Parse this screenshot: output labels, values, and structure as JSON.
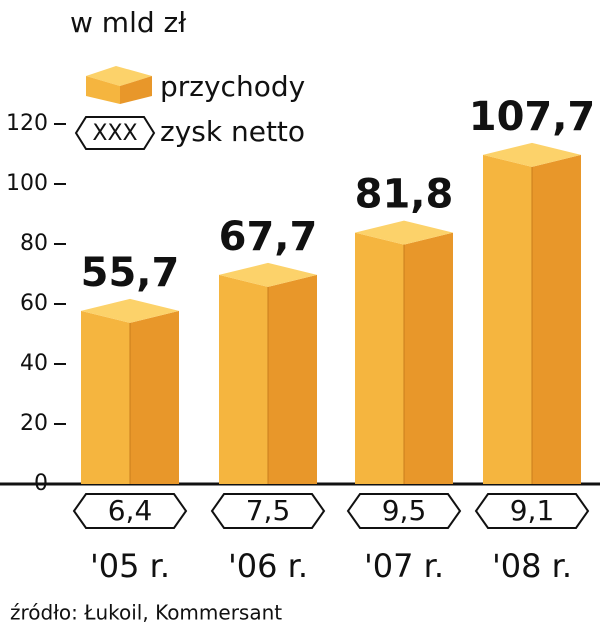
{
  "chart_data": {
    "type": "bar",
    "subtitle": "w mld zł",
    "categories": [
      "'05 r.",
      "'06 r.",
      "'07 r.",
      "'08 r."
    ],
    "series": [
      {
        "name": "przychody",
        "color": "#f5b53f",
        "values": [
          55.7,
          67.7,
          81.8,
          107.7
        ],
        "value_labels": [
          "55,7",
          "67,7",
          "81,8",
          "107,7"
        ]
      },
      {
        "name": "zysk netto",
        "legend_symbol_text": "XXX",
        "values": [
          6.4,
          7.5,
          9.5,
          9.1
        ],
        "value_labels": [
          "6,4",
          "7,5",
          "9,5",
          "9,1"
        ]
      }
    ],
    "ylim": [
      0,
      120
    ],
    "yticks": [
      0,
      20,
      40,
      60,
      80,
      100,
      120
    ],
    "source": "źródło: Łukoil, Kommersant"
  }
}
